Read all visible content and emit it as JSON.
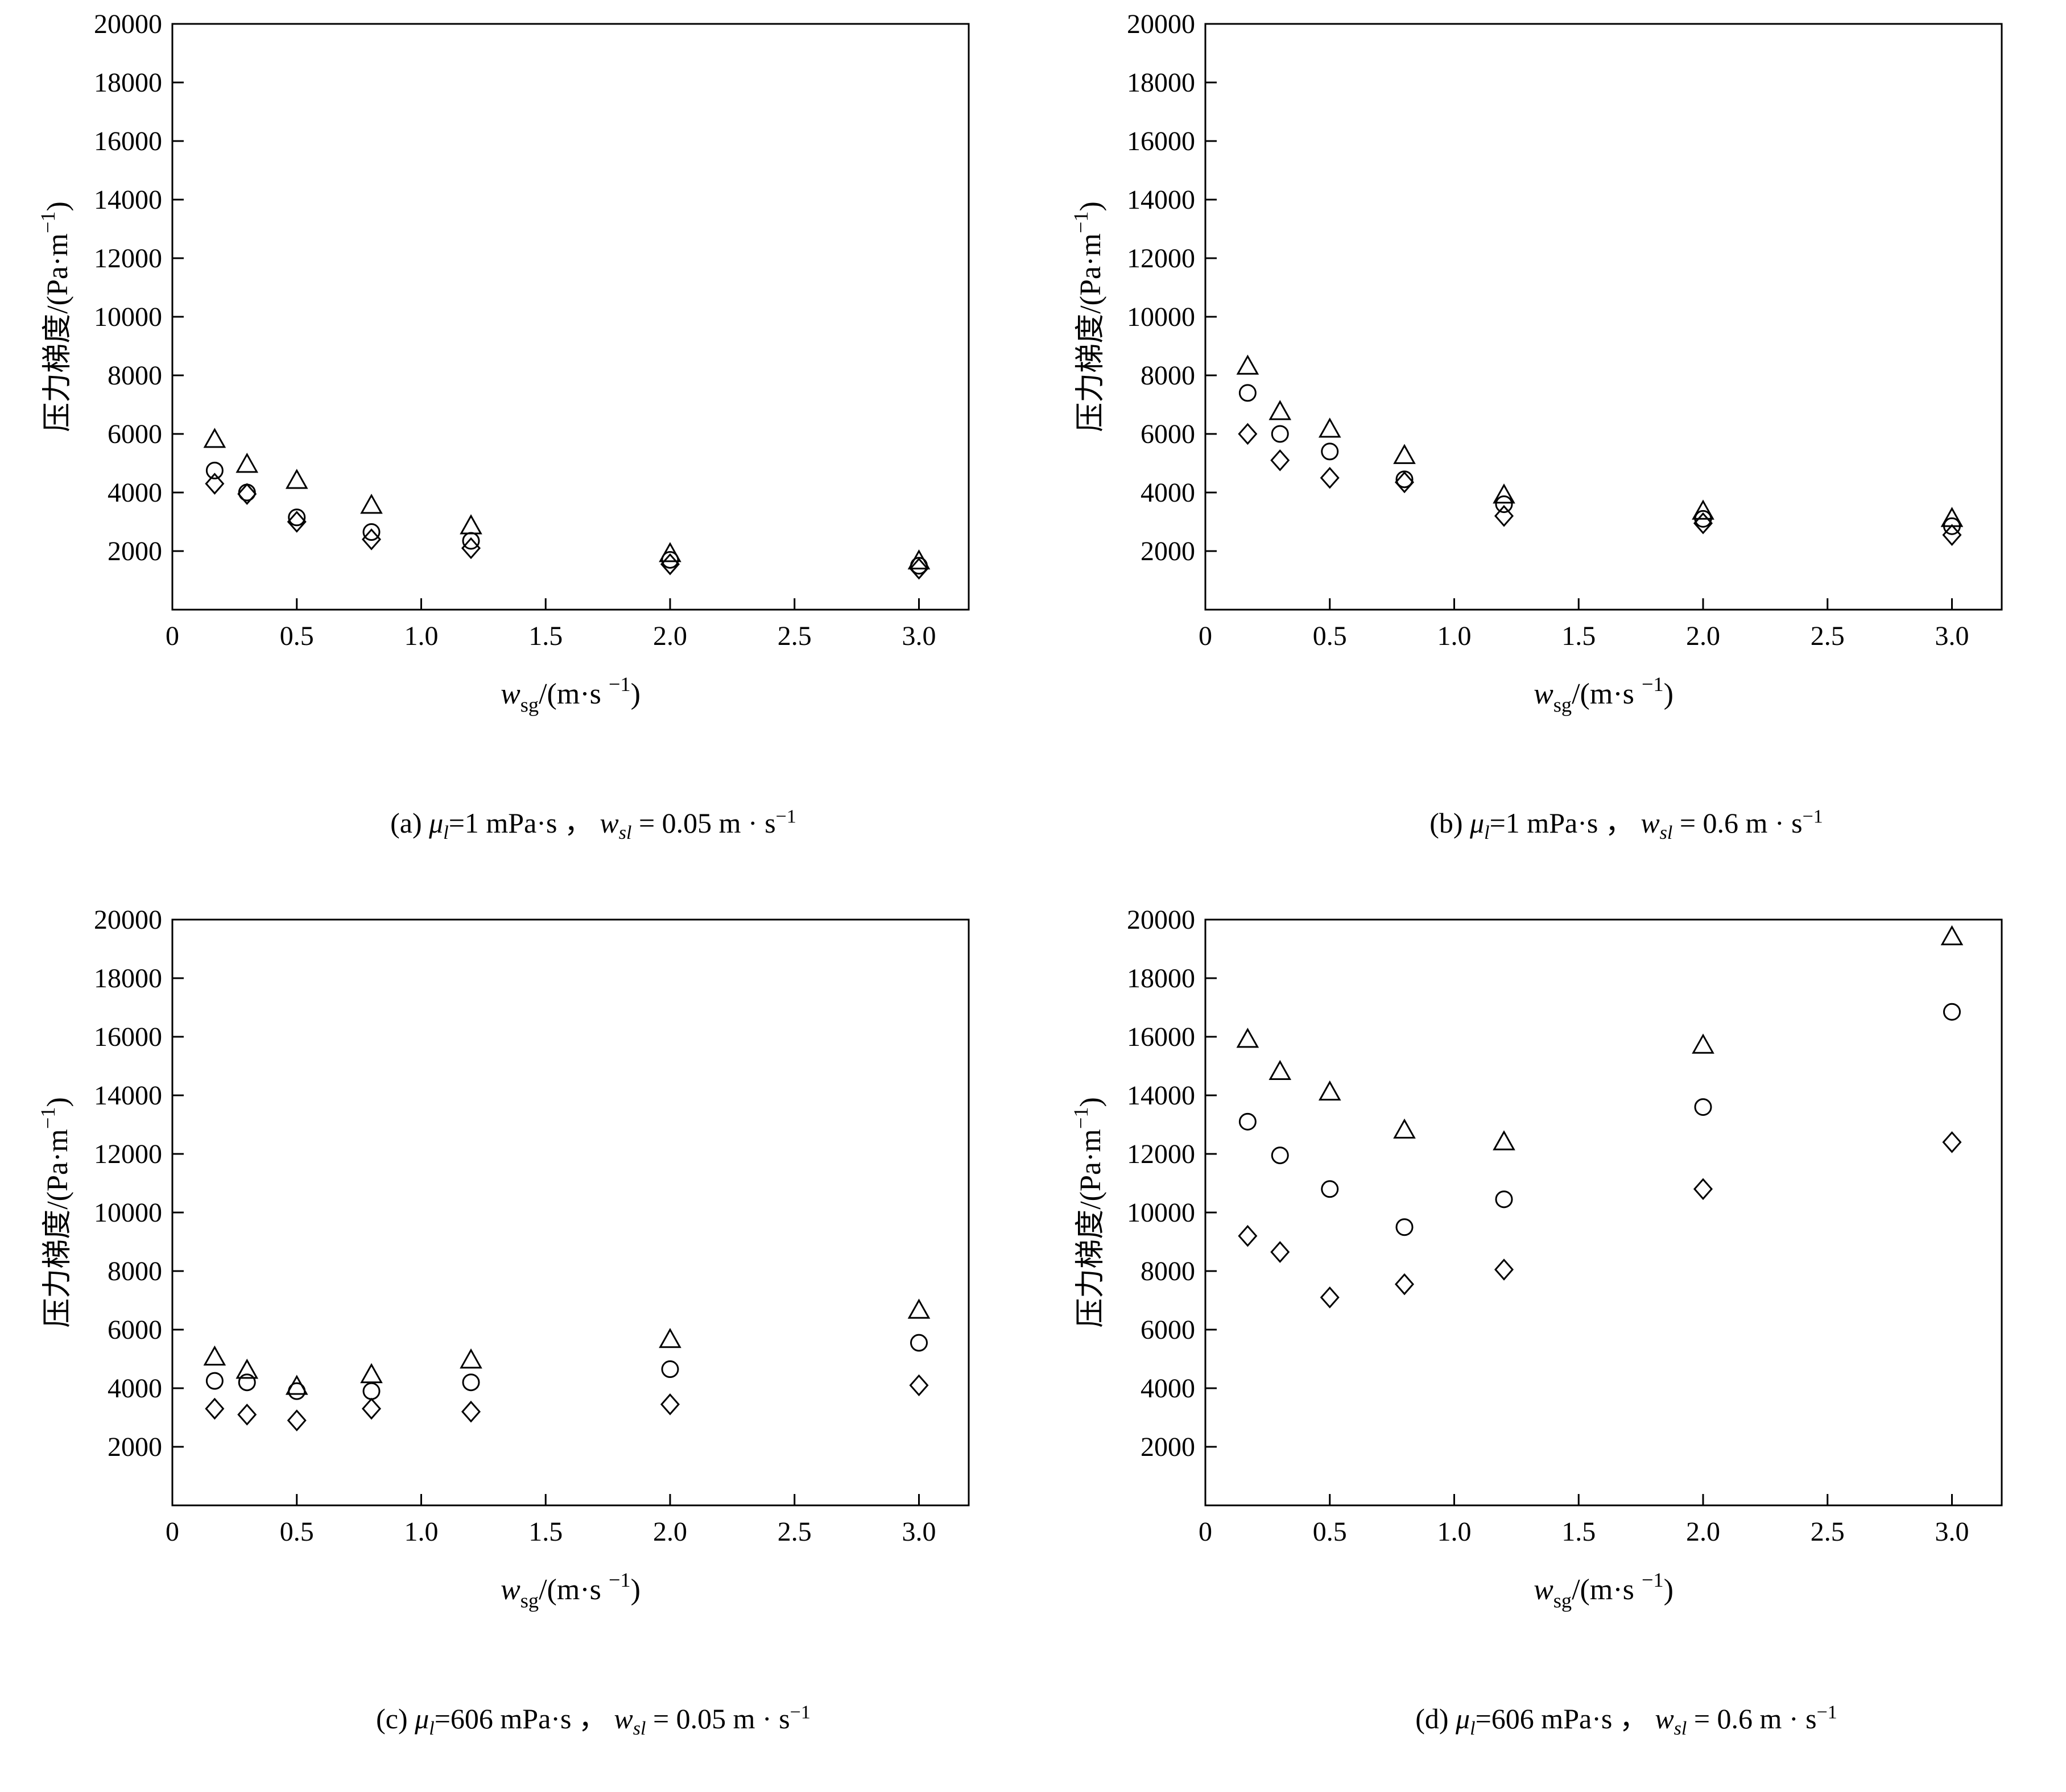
{
  "figure": {
    "description": "Four scatter plots of pressure gradient versus superficial gas velocity",
    "marker_color": "#000000",
    "background": "#ffffff"
  },
  "chart_data": [
    {
      "type": "scatter",
      "panel": "a",
      "caption_text": "(a) μl=1 mPa·s ， wsl= 0.05 m·s−1",
      "caption_parts": [
        {
          "t": "(a) "
        },
        {
          "t": "μ",
          "i": 1
        },
        {
          "t": "l",
          "i": 1,
          "sub": 1
        },
        {
          "t": "=1 mPa·s ， "
        },
        {
          "t": "w",
          "i": 1
        },
        {
          "t": "sl",
          "i": 1,
          "sub": 1
        },
        {
          "t": " = 0.05 m · s"
        },
        {
          "t": "−1",
          "sup": 1
        }
      ],
      "xlabel_parts": [
        {
          "t": "w",
          "i": 1
        },
        {
          "t": "sg",
          "sub": 1
        },
        {
          "t": "/(m·s "
        },
        {
          "t": "−1",
          "sup": 1
        },
        {
          "t": ")"
        }
      ],
      "ylabel_parts": [
        {
          "t": "压力梯度/(Pa·m"
        },
        {
          "t": "−1",
          "sup": 1
        },
        {
          "t": ")"
        }
      ],
      "xlim": [
        0,
        3.2
      ],
      "ylim": [
        0,
        20000
      ],
      "x_ticks": [
        0.5,
        1.0,
        1.5,
        2.0,
        2.5,
        3.0
      ],
      "y_ticks": [
        0,
        2000,
        4000,
        6000,
        8000,
        10000,
        12000,
        14000,
        16000,
        18000,
        20000
      ],
      "x": [
        0.17,
        0.3,
        0.5,
        0.8,
        1.2,
        2.0,
        3.0
      ],
      "series": [
        {
          "name": "triangle-series",
          "marker": "triangle",
          "values": [
            5800,
            4950,
            4400,
            3550,
            2850,
            1900,
            1650
          ]
        },
        {
          "name": "circle-series",
          "marker": "circle",
          "values": [
            4750,
            4000,
            3150,
            2650,
            2350,
            1700,
            1500
          ]
        },
        {
          "name": "diamond-series",
          "marker": "diamond",
          "values": [
            4300,
            3950,
            3000,
            2400,
            2100,
            1550,
            1400
          ]
        }
      ]
    },
    {
      "type": "scatter",
      "panel": "b",
      "caption_text": "(b) μl=1 mPa·s ， wsl= 0.6 m·s−1",
      "caption_parts": [
        {
          "t": "(b) "
        },
        {
          "t": "μ",
          "i": 1
        },
        {
          "t": "l",
          "i": 1,
          "sub": 1
        },
        {
          "t": "=1 mPa·s ， "
        },
        {
          "t": "w",
          "i": 1
        },
        {
          "t": "sl",
          "i": 1,
          "sub": 1
        },
        {
          "t": " = 0.6 m · s"
        },
        {
          "t": "−1",
          "sup": 1
        }
      ],
      "xlabel_parts": [
        {
          "t": "w",
          "i": 1
        },
        {
          "t": "sg",
          "sub": 1
        },
        {
          "t": "/(m·s "
        },
        {
          "t": "−1",
          "sup": 1
        },
        {
          "t": ")"
        }
      ],
      "ylabel_parts": [
        {
          "t": "压力梯度/(Pa·m"
        },
        {
          "t": "−1",
          "sup": 1
        },
        {
          "t": ")"
        }
      ],
      "xlim": [
        0,
        3.2
      ],
      "ylim": [
        0,
        20000
      ],
      "x_ticks": [
        0.5,
        1.0,
        1.5,
        2.0,
        2.5,
        3.0
      ],
      "y_ticks": [
        0,
        2000,
        4000,
        6000,
        8000,
        10000,
        12000,
        14000,
        16000,
        18000,
        20000
      ],
      "x": [
        0.17,
        0.3,
        0.5,
        0.8,
        1.2,
        2.0,
        3.0
      ],
      "series": [
        {
          "name": "triangle-series",
          "marker": "triangle",
          "values": [
            8300,
            6750,
            6150,
            5250,
            3900,
            3350,
            3100
          ]
        },
        {
          "name": "circle-series",
          "marker": "circle",
          "values": [
            7400,
            6000,
            5400,
            4450,
            3600,
            3100,
            2850
          ]
        },
        {
          "name": "diamond-series",
          "marker": "diamond",
          "values": [
            6000,
            5100,
            4500,
            4350,
            3200,
            2950,
            2550
          ]
        }
      ]
    },
    {
      "type": "scatter",
      "panel": "c",
      "caption_text": "(c) μl=606 mPa·s ， wsl= 0.05 m·s−1",
      "caption_parts": [
        {
          "t": "(c) "
        },
        {
          "t": "μ",
          "i": 1
        },
        {
          "t": "l",
          "i": 1,
          "sub": 1
        },
        {
          "t": "=606 mPa·s ， "
        },
        {
          "t": "w",
          "i": 1
        },
        {
          "t": "sl",
          "i": 1,
          "sub": 1
        },
        {
          "t": " = 0.05 m · s"
        },
        {
          "t": "−1",
          "sup": 1
        }
      ],
      "xlabel_parts": [
        {
          "t": "w",
          "i": 1
        },
        {
          "t": "sg",
          "sub": 1
        },
        {
          "t": "/(m·s "
        },
        {
          "t": "−1",
          "sup": 1
        },
        {
          "t": ")"
        }
      ],
      "ylabel_parts": [
        {
          "t": "压力梯度/(Pa·m"
        },
        {
          "t": "−1",
          "sup": 1
        },
        {
          "t": ")"
        }
      ],
      "xlim": [
        0,
        3.2
      ],
      "ylim": [
        0,
        20000
      ],
      "x_ticks": [
        0.5,
        1.0,
        1.5,
        2.0,
        2.5,
        3.0
      ],
      "y_ticks": [
        0,
        2000,
        4000,
        6000,
        8000,
        10000,
        12000,
        14000,
        16000,
        18000,
        20000
      ],
      "x": [
        0.17,
        0.3,
        0.5,
        0.8,
        1.2,
        2.0,
        3.0
      ],
      "series": [
        {
          "name": "triangle-series",
          "marker": "triangle",
          "values": [
            5050,
            4600,
            4050,
            4450,
            4950,
            5650,
            6650
          ]
        },
        {
          "name": "circle-series",
          "marker": "circle",
          "values": [
            4250,
            4200,
            3900,
            3900,
            4200,
            4650,
            5550
          ]
        },
        {
          "name": "diamond-series",
          "marker": "diamond",
          "values": [
            3300,
            3100,
            2900,
            3300,
            3200,
            3450,
            4100
          ]
        }
      ]
    },
    {
      "type": "scatter",
      "panel": "d",
      "caption_text": "(d) μl=606 mPa·s ， wsl= 0.6 m·s−1",
      "caption_parts": [
        {
          "t": "(d) "
        },
        {
          "t": "μ",
          "i": 1
        },
        {
          "t": "l",
          "i": 1,
          "sub": 1
        },
        {
          "t": "=606 mPa·s ， "
        },
        {
          "t": "w",
          "i": 1
        },
        {
          "t": "sl",
          "i": 1,
          "sub": 1
        },
        {
          "t": " = 0.6 m · s"
        },
        {
          "t": "−1",
          "sup": 1
        }
      ],
      "xlabel_parts": [
        {
          "t": "w",
          "i": 1
        },
        {
          "t": "sg",
          "sub": 1
        },
        {
          "t": "/(m·s "
        },
        {
          "t": "−1",
          "sup": 1
        },
        {
          "t": ")"
        }
      ],
      "ylabel_parts": [
        {
          "t": "压力梯度/(Pa·m"
        },
        {
          "t": "−1",
          "sup": 1
        },
        {
          "t": ")"
        }
      ],
      "xlim": [
        0,
        3.2
      ],
      "ylim": [
        0,
        20000
      ],
      "x_ticks": [
        0.5,
        1.0,
        1.5,
        2.0,
        2.5,
        3.0
      ],
      "y_ticks": [
        0,
        2000,
        4000,
        6000,
        8000,
        10000,
        12000,
        14000,
        16000,
        18000,
        20000
      ],
      "x": [
        0.17,
        0.3,
        0.5,
        0.8,
        1.2,
        2.0,
        3.0
      ],
      "series": [
        {
          "name": "triangle-series",
          "marker": "triangle",
          "values": [
            15900,
            14800,
            14100,
            12800,
            12400,
            15700,
            19400
          ]
        },
        {
          "name": "circle-series",
          "marker": "circle",
          "values": [
            13100,
            11950,
            10800,
            9500,
            10450,
            13600,
            16850
          ]
        },
        {
          "name": "diamond-series",
          "marker": "diamond",
          "values": [
            9200,
            8650,
            7100,
            7550,
            8050,
            10800,
            12400
          ]
        }
      ]
    }
  ]
}
